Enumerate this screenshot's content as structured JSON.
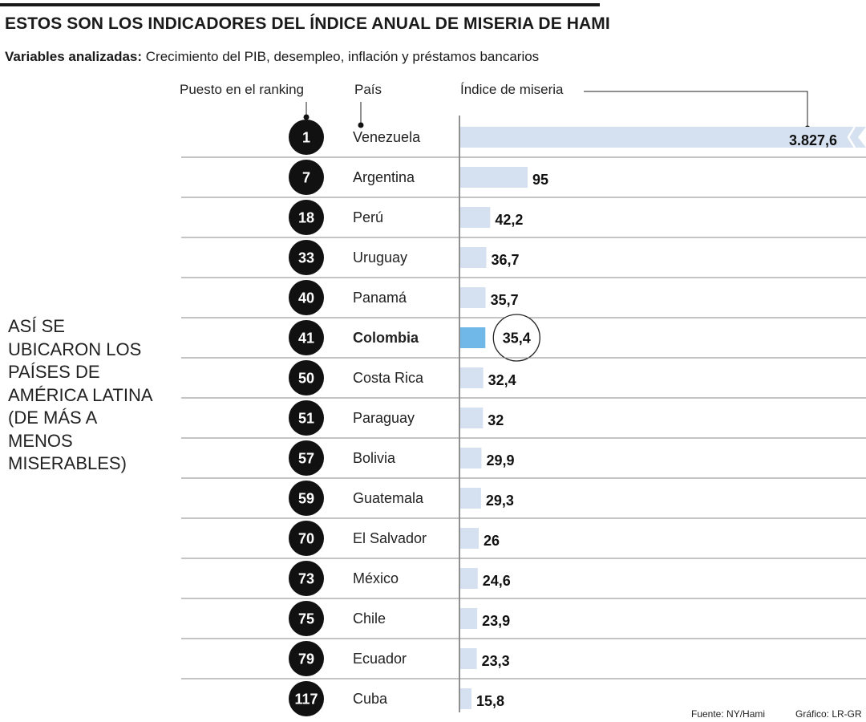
{
  "header": {
    "title": "ESTOS SON LOS INDICADORES DEL ÍNDICE ANUAL DE MISERIA DE HAMI",
    "subtitle_label": "Variables analizadas:",
    "subtitle_text": " Crecimiento del PIB, desempleo, inflación y préstamos bancarios"
  },
  "columns": {
    "rank": "Puesto en el ranking",
    "country": "País",
    "index": "Índice de miseria"
  },
  "side_note": "ASÍ SE UBICARON LOS PAÍSES DE AMÉRICA LATINA (DE MÁS A MENOS MISERABLES)",
  "footer": {
    "source": "Fuente: NY/Hami",
    "credit": "Gráfico: LR-GR"
  },
  "colors": {
    "bar": "#d5e1f0",
    "highlight_bar": "#6fb8e8",
    "badge": "#111111",
    "badge_text": "#ffffff"
  },
  "chart_data": {
    "type": "bar",
    "orientation": "horizontal",
    "highlight": "Colombia",
    "broken_axis_category": "Venezuela",
    "rows": [
      {
        "rank": "1",
        "country": "Venezuela",
        "value": 3827.6,
        "label": "3.827,6"
      },
      {
        "rank": "7",
        "country": "Argentina",
        "value": 95,
        "label": "95"
      },
      {
        "rank": "18",
        "country": "Perú",
        "value": 42.2,
        "label": "42,2"
      },
      {
        "rank": "33",
        "country": "Uruguay",
        "value": 36.7,
        "label": "36,7"
      },
      {
        "rank": "40",
        "country": "Panamá",
        "value": 35.7,
        "label": "35,7"
      },
      {
        "rank": "41",
        "country": "Colombia",
        "value": 35.4,
        "label": "35,4"
      },
      {
        "rank": "50",
        "country": "Costa Rica",
        "value": 32.4,
        "label": "32,4"
      },
      {
        "rank": "51",
        "country": "Paraguay",
        "value": 32,
        "label": "32"
      },
      {
        "rank": "57",
        "country": "Bolivia",
        "value": 29.9,
        "label": "29,9"
      },
      {
        "rank": "59",
        "country": "Guatemala",
        "value": 29.3,
        "label": "29,3"
      },
      {
        "rank": "70",
        "country": "El Salvador",
        "value": 26,
        "label": "26"
      },
      {
        "rank": "73",
        "country": "México",
        "value": 24.6,
        "label": "24,6"
      },
      {
        "rank": "75",
        "country": "Chile",
        "value": 23.9,
        "label": "23,9"
      },
      {
        "rank": "79",
        "country": "Ecuador",
        "value": 23.3,
        "label": "23,3"
      },
      {
        "rank": "117",
        "country": "Cuba",
        "value": 15.8,
        "label": "15,8"
      }
    ]
  }
}
